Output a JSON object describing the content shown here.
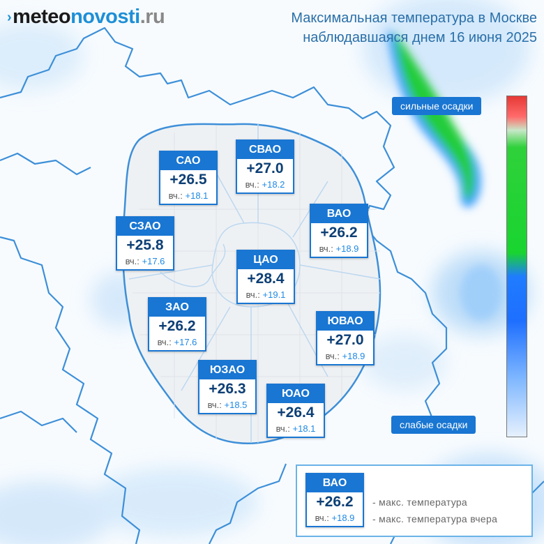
{
  "logo": {
    "mark": "›",
    "part1": "meteo",
    "part2": "novosti",
    "part3": ".ru"
  },
  "title": {
    "line1": "Максимальная температура в Москве",
    "line2": "наблюдавшаяся днем 16 июня 2025"
  },
  "prev_label": "вч.:",
  "districts": [
    {
      "name": "САО",
      "temp": "+26.5",
      "prev": "+18.1"
    },
    {
      "name": "СВАО",
      "temp": "+27.0",
      "prev": "+18.2"
    },
    {
      "name": "ВАО",
      "temp": "+26.2",
      "prev": "+18.9"
    },
    {
      "name": "СЗАО",
      "temp": "+25.8",
      "prev": "+17.6"
    },
    {
      "name": "ЦАО",
      "temp": "+28.4",
      "prev": "+19.1"
    },
    {
      "name": "ЗАО",
      "temp": "+26.2",
      "prev": "+17.6"
    },
    {
      "name": "ЮВАО",
      "temp": "+27.0",
      "prev": "+18.9"
    },
    {
      "name": "ЮЗАО",
      "temp": "+26.3",
      "prev": "+18.5"
    },
    {
      "name": "ЮАО",
      "temp": "+26.4",
      "prev": "+18.1"
    }
  ],
  "scale": {
    "top_label": "сильные осадки",
    "bottom_label": "слабые осадки"
  },
  "legend": {
    "name": "ВАО",
    "temp": "+26.2",
    "prev": "+18.9",
    "desc_max": "- макс. температура",
    "desc_prev": "- макс. температура вчера"
  },
  "colors": {
    "accent": "#1976d2",
    "text_dark": "#0d3f75",
    "prev_value": "#1e88e5",
    "title": "#2a6fa8"
  }
}
